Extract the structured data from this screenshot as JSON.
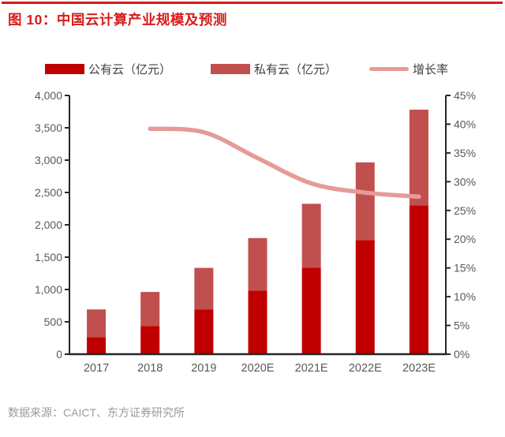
{
  "header": {
    "title": "图 10：中国云计算产业规模及预测"
  },
  "legend": [
    {
      "label": "公有云（亿元）",
      "type": "bar",
      "color": "#c00000"
    },
    {
      "label": "私有云（亿元）",
      "type": "bar",
      "color": "#c0504d"
    },
    {
      "label": "增长率",
      "type": "line",
      "color": "#e59b97"
    }
  ],
  "footer": {
    "source": "数据来源：CAICT、东方证券研究所"
  },
  "colors": {
    "accent_red": "#d71c1c",
    "public_cloud": "#c00000",
    "private_cloud": "#c0504d",
    "growth_line": "#e59b97",
    "axis_line": "#262626",
    "tick_text": "#595959",
    "footer_text": "#9b9b9b"
  },
  "chart_data": {
    "type": "bar",
    "subtype": "stacked-bars-with-line",
    "title": "中国云计算产业规模及预测",
    "categories": [
      "2017",
      "2018",
      "2019",
      "2020E",
      "2021E",
      "2022E",
      "2023E"
    ],
    "series": [
      {
        "name": "公有云（亿元）",
        "type": "bar",
        "axis": "left",
        "color": "#c00000",
        "values": [
          265,
          437,
          689,
          985,
          1335,
          1765,
          2300
        ]
      },
      {
        "name": "私有云（亿元）",
        "type": "bar",
        "axis": "left",
        "color": "#c0504d",
        "values": [
          427,
          525,
          645,
          810,
          990,
          1200,
          1480
        ]
      },
      {
        "name": "增长率",
        "type": "line",
        "axis": "right",
        "color": "#e59b97",
        "values": [
          null,
          39.2,
          38.6,
          34.1,
          29.7,
          28.1,
          27.4
        ]
      }
    ],
    "left_axis": {
      "min": 0,
      "max": 4000,
      "step": 500,
      "format": "thousands",
      "unit": "亿元"
    },
    "right_axis": {
      "min": 0,
      "max": 45,
      "step": 5,
      "format": "percent",
      "unit": "%"
    },
    "grid": false,
    "legend_position": "top",
    "source": "数据来源：CAICT、东方证券研究所"
  }
}
